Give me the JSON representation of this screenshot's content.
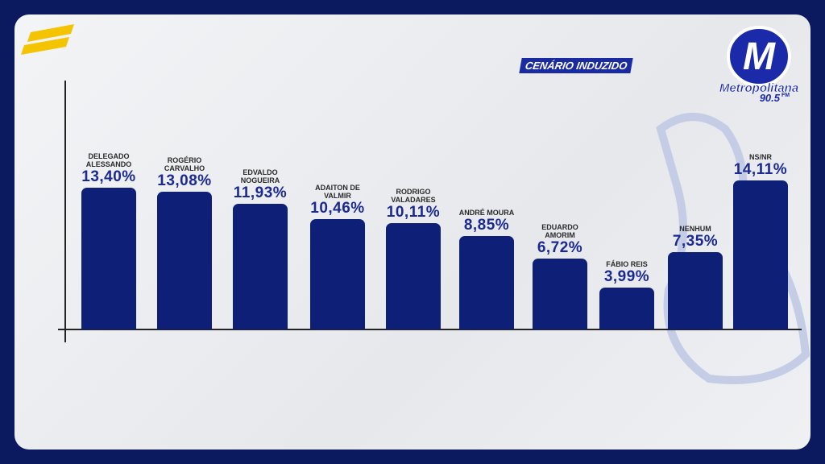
{
  "chart_data": {
    "type": "bar",
    "title": "CENÁRIO INDUZIDO",
    "categories": [
      "DELEGADO ALESSANDO",
      "ROGÉRIO CARVALHO",
      "EDVALDO NOGUEIRA",
      "ADAITON DE VALMIR",
      "RODRIGO VALADARES",
      "ANDRÉ MOURA",
      "EDUARDO AMORIM",
      "FÁBIO REIS",
      "NENHUM",
      "NS/NR"
    ],
    "values": [
      13.4,
      13.08,
      11.93,
      10.46,
      10.11,
      8.85,
      6.72,
      3.99,
      7.35,
      14.11
    ],
    "value_labels": [
      "13,40%",
      "13,08%",
      "11,93%",
      "10,46%",
      "10,11%",
      "8,85%",
      "6,72%",
      "3,99%",
      "7,35%",
      "14,11%"
    ],
    "color": "#0e1f78"
  },
  "logo": {
    "letter": "M",
    "name": "Metropolitana",
    "frequency": "90.5",
    "band": "FM"
  }
}
